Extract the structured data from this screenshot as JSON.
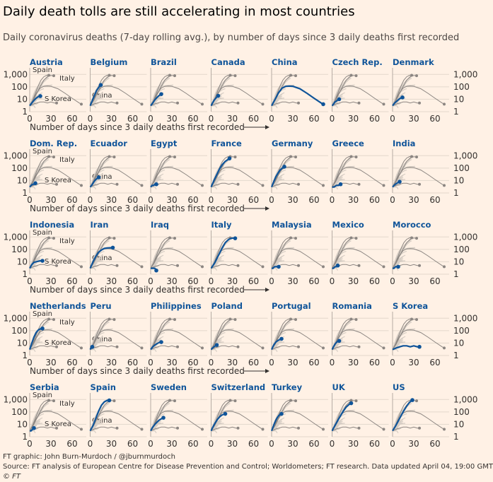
{
  "header": {
    "title": "Daily death tolls are still accelerating in most countries",
    "subtitle": "Daily coronavirus deaths (7-day rolling avg.), by number of days since 3 daily deaths first recorded"
  },
  "footer": {
    "graphic": "FT graphic: John Burn-Murdoch / @jburnmurdoch",
    "source": "Source: FT analysis of European Centre for Disease Prevention and Control; Worldometers; FT research. Data updated April 04, 19:00 GMT",
    "credit": "© FT"
  },
  "colors": {
    "background": "#fff1e5",
    "highlight": "#0f5499",
    "reference": "#8c8682",
    "other_countries": "#d6cdc4",
    "title_text": "#0f5499"
  },
  "chart_data": {
    "type": "line",
    "layout": "small multiples, 5 rows x 7 columns",
    "x_axis": {
      "label": "Number of days since 3 daily deaths first recorded",
      "ticks": [
        0,
        30,
        60
      ],
      "range": [
        0,
        80
      ]
    },
    "y_axis": {
      "scale": "log",
      "ticks": [
        1,
        10,
        100,
        1000
      ],
      "tick_labels": [
        "1",
        "10",
        "100",
        "1,000"
      ],
      "range": [
        1,
        2000
      ]
    },
    "reference_labels": [
      "Spain",
      "Italy",
      "S Korea",
      "China"
    ],
    "reference_series": [
      {
        "name": "Spain",
        "x": [
          0,
          4,
          8,
          12,
          16,
          20,
          24,
          27
        ],
        "y": [
          3,
          8,
          30,
          120,
          350,
          650,
          850,
          850
        ]
      },
      {
        "name": "Italy",
        "x": [
          0,
          5,
          10,
          15,
          20,
          25,
          30,
          34
        ],
        "y": [
          3,
          8,
          30,
          110,
          350,
          650,
          820,
          780
        ]
      },
      {
        "name": "S Korea",
        "x": [
          0,
          5,
          10,
          15,
          20,
          25,
          30,
          35,
          38
        ],
        "y": [
          3,
          4,
          5,
          6,
          6,
          5,
          6,
          5,
          5
        ]
      },
      {
        "name": "China",
        "x": [
          0,
          5,
          10,
          15,
          20,
          25,
          30,
          40,
          50,
          60,
          70,
          73
        ],
        "y": [
          3,
          10,
          35,
          80,
          110,
          115,
          110,
          70,
          30,
          12,
          5,
          4
        ]
      }
    ],
    "panels": [
      {
        "name": "Austria",
        "x": [
          0,
          3,
          6,
          9,
          12,
          15
        ],
        "y": [
          3,
          5,
          8,
          12,
          16,
          18
        ]
      },
      {
        "name": "Belgium",
        "x": [
          0,
          3,
          6,
          9,
          12,
          15
        ],
        "y": [
          3,
          8,
          20,
          50,
          90,
          140
        ]
      },
      {
        "name": "Brazil",
        "x": [
          0,
          3,
          6,
          9,
          12,
          15
        ],
        "y": [
          3,
          5,
          9,
          14,
          20,
          26
        ]
      },
      {
        "name": "Canada",
        "x": [
          0,
          2,
          4,
          6,
          8,
          10
        ],
        "y": [
          3,
          5,
          8,
          11,
          15,
          19
        ]
      },
      {
        "name": "China",
        "x": [
          0,
          5,
          10,
          15,
          20,
          25,
          30,
          40,
          50,
          60,
          70,
          73
        ],
        "y": [
          3,
          10,
          35,
          80,
          110,
          115,
          110,
          70,
          30,
          12,
          5,
          4
        ]
      },
      {
        "name": "Czech Rep.",
        "x": [
          0,
          2,
          4,
          6,
          8,
          10
        ],
        "y": [
          3,
          4,
          6,
          7,
          9,
          10
        ]
      },
      {
        "name": "Denmark",
        "x": [
          0,
          3,
          6,
          9,
          12,
          14
        ],
        "y": [
          3,
          5,
          7,
          10,
          13,
          14
        ]
      },
      {
        "name": "Dom. Rep.",
        "x": [
          0,
          2,
          4,
          6,
          8
        ],
        "y": [
          3,
          4,
          5,
          5,
          6
        ]
      },
      {
        "name": "Ecuador",
        "x": [
          0,
          2,
          4,
          6,
          8,
          10,
          12
        ],
        "y": [
          3,
          4,
          6,
          9,
          12,
          15,
          18
        ]
      },
      {
        "name": "Egypt",
        "x": [
          0,
          2,
          4,
          6,
          8
        ],
        "y": [
          3,
          4,
          4,
          5,
          5
        ]
      },
      {
        "name": "France",
        "x": [
          0,
          4,
          8,
          12,
          16,
          20,
          24,
          26
        ],
        "y": [
          3,
          10,
          30,
          90,
          200,
          350,
          500,
          600
        ]
      },
      {
        "name": "Germany",
        "x": [
          0,
          3,
          6,
          9,
          12,
          15,
          18
        ],
        "y": [
          3,
          8,
          20,
          40,
          70,
          100,
          130
        ]
      },
      {
        "name": "Greece",
        "x": [
          0,
          3,
          6,
          9,
          12
        ],
        "y": [
          3,
          3,
          4,
          4,
          5
        ]
      },
      {
        "name": "India",
        "x": [
          0,
          2,
          4,
          6,
          8,
          10
        ],
        "y": [
          3,
          4,
          5,
          6,
          7,
          8
        ]
      },
      {
        "name": "Indonesia",
        "x": [
          0,
          3,
          6,
          9,
          12,
          15,
          18
        ],
        "y": [
          3,
          6,
          9,
          10,
          11,
          12,
          12
        ]
      },
      {
        "name": "Iran",
        "x": [
          0,
          4,
          8,
          12,
          16,
          20,
          24,
          28,
          32
        ],
        "y": [
          3,
          10,
          28,
          60,
          90,
          120,
          130,
          135,
          138
        ]
      },
      {
        "name": "Iraq",
        "x": [
          0,
          3,
          6,
          8
        ],
        "y": [
          3,
          3,
          3,
          2
        ]
      },
      {
        "name": "Italy",
        "x": [
          0,
          5,
          10,
          15,
          20,
          25,
          30,
          34
        ],
        "y": [
          3,
          8,
          30,
          110,
          350,
          650,
          820,
          780
        ]
      },
      {
        "name": "Malaysia",
        "x": [
          0,
          2,
          4,
          6,
          8,
          10
        ],
        "y": [
          3,
          3,
          4,
          4,
          4,
          4
        ]
      },
      {
        "name": "Mexico",
        "x": [
          0,
          2,
          4,
          6,
          8
        ],
        "y": [
          3,
          3,
          4,
          4,
          5
        ]
      },
      {
        "name": "Morocco",
        "x": [
          0,
          2,
          4,
          6,
          8
        ],
        "y": [
          3,
          3,
          4,
          4,
          4
        ]
      },
      {
        "name": "Netherlands",
        "x": [
          0,
          3,
          6,
          9,
          12,
          15,
          18
        ],
        "y": [
          3,
          10,
          30,
          70,
          110,
          140,
          150
        ]
      },
      {
        "name": "Peru",
        "x": [
          0,
          1,
          2,
          3
        ],
        "y": [
          3,
          4,
          4,
          5
        ]
      },
      {
        "name": "Philippines",
        "x": [
          0,
          3,
          6,
          9,
          12,
          15
        ],
        "y": [
          3,
          5,
          7,
          9,
          11,
          12
        ]
      },
      {
        "name": "Poland",
        "x": [
          0,
          2,
          4,
          6,
          8
        ],
        "y": [
          3,
          4,
          5,
          6,
          7
        ]
      },
      {
        "name": "Portugal",
        "x": [
          0,
          3,
          6,
          9,
          12,
          14
        ],
        "y": [
          3,
          7,
          12,
          16,
          20,
          22
        ]
      },
      {
        "name": "Romania",
        "x": [
          0,
          2,
          4,
          6,
          8,
          10
        ],
        "y": [
          3,
          5,
          8,
          11,
          14,
          15
        ]
      },
      {
        "name": "S Korea",
        "x": [
          0,
          5,
          10,
          15,
          20,
          25,
          30,
          35,
          38
        ],
        "y": [
          3,
          4,
          5,
          6,
          6,
          5,
          6,
          5,
          5
        ]
      },
      {
        "name": "Serbia",
        "x": [
          0,
          2,
          4,
          6
        ],
        "y": [
          3,
          3,
          4,
          5
        ]
      },
      {
        "name": "Spain",
        "x": [
          0,
          4,
          8,
          12,
          16,
          20,
          24,
          27
        ],
        "y": [
          3,
          8,
          30,
          120,
          350,
          650,
          850,
          850
        ]
      },
      {
        "name": "Sweden",
        "x": [
          0,
          3,
          6,
          9,
          12,
          15,
          18
        ],
        "y": [
          3,
          6,
          10,
          15,
          22,
          28,
          34
        ]
      },
      {
        "name": "Switzerland",
        "x": [
          0,
          3,
          6,
          9,
          12,
          15,
          18,
          20
        ],
        "y": [
          3,
          7,
          14,
          25,
          40,
          55,
          65,
          70
        ]
      },
      {
        "name": "Turkey",
        "x": [
          0,
          2,
          4,
          6,
          8,
          10,
          12,
          14
        ],
        "y": [
          3,
          6,
          12,
          22,
          35,
          50,
          62,
          70
        ]
      },
      {
        "name": "UK",
        "x": [
          0,
          4,
          8,
          12,
          16,
          20,
          24,
          27
        ],
        "y": [
          3,
          8,
          20,
          50,
          120,
          250,
          400,
          500
        ]
      },
      {
        "name": "US",
        "x": [
          0,
          4,
          8,
          12,
          16,
          20,
          24,
          28
        ],
        "y": [
          3,
          7,
          18,
          50,
          130,
          300,
          600,
          900
        ]
      }
    ]
  }
}
